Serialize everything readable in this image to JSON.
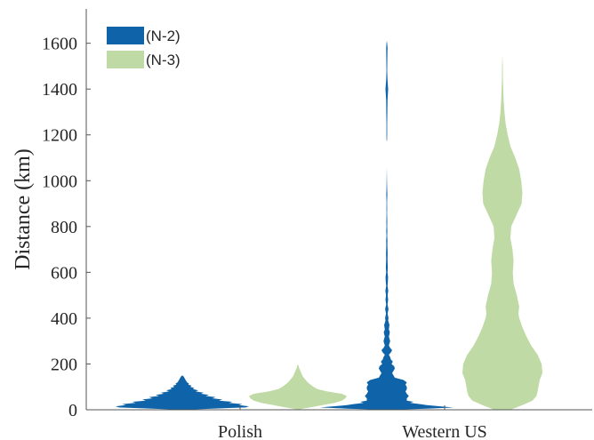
{
  "chart_data": {
    "type": "violin",
    "title": "",
    "xlabel": "",
    "ylabel": "Distance (km)",
    "ylim": [
      0,
      1750
    ],
    "yticks": [
      0,
      200,
      400,
      600,
      800,
      1000,
      1200,
      1400,
      1600
    ],
    "ytick_labels": [
      "0",
      "200",
      "400",
      "600",
      "800",
      "1000",
      "1200",
      "1400",
      "1600"
    ],
    "categories": [
      "Polish",
      "Western US"
    ],
    "grid": false,
    "legend_position": "top-left",
    "series": [
      {
        "name": "(N-2)",
        "color": "#0f63a8",
        "violins": [
          {
            "category": "Polish",
            "profile": [
              [
                0,
                0.03
              ],
              [
                5,
                0.45
              ],
              [
                10,
                0.95
              ],
              [
                15,
                1.0
              ],
              [
                20,
                0.85
              ],
              [
                25,
                0.9
              ],
              [
                30,
                0.7
              ],
              [
                35,
                0.75
              ],
              [
                40,
                0.55
              ],
              [
                45,
                0.6
              ],
              [
                50,
                0.45
              ],
              [
                55,
                0.5
              ],
              [
                60,
                0.35
              ],
              [
                65,
                0.4
              ],
              [
                70,
                0.28
              ],
              [
                75,
                0.32
              ],
              [
                80,
                0.2
              ],
              [
                85,
                0.24
              ],
              [
                90,
                0.16
              ],
              [
                95,
                0.18
              ],
              [
                100,
                0.12
              ],
              [
                105,
                0.14
              ],
              [
                110,
                0.09
              ],
              [
                115,
                0.1
              ],
              [
                120,
                0.07
              ],
              [
                125,
                0.06
              ],
              [
                130,
                0.05
              ],
              [
                135,
                0.04
              ],
              [
                140,
                0.03
              ],
              [
                145,
                0.02
              ],
              [
                150,
                0.0
              ]
            ]
          },
          {
            "category": "Western US",
            "profile": [
              [
                0,
                0.05
              ],
              [
                5,
                0.6
              ],
              [
                10,
                1.0
              ],
              [
                15,
                0.8
              ],
              [
                20,
                0.6
              ],
              [
                25,
                0.5
              ],
              [
                30,
                0.35
              ],
              [
                35,
                0.4
              ],
              [
                40,
                0.3
              ],
              [
                50,
                0.3
              ],
              [
                60,
                0.33
              ],
              [
                70,
                0.3
              ],
              [
                80,
                0.28
              ],
              [
                90,
                0.3
              ],
              [
                100,
                0.3
              ],
              [
                110,
                0.28
              ],
              [
                120,
                0.3
              ],
              [
                130,
                0.25
              ],
              [
                140,
                0.12
              ],
              [
                150,
                0.1
              ],
              [
                160,
                0.08
              ],
              [
                170,
                0.1
              ],
              [
                180,
                0.12
              ],
              [
                190,
                0.11
              ],
              [
                200,
                0.07
              ],
              [
                210,
                0.09
              ],
              [
                220,
                0.06
              ],
              [
                230,
                0.05
              ],
              [
                240,
                0.03
              ],
              [
                250,
                0.06
              ],
              [
                260,
                0.08
              ],
              [
                270,
                0.05
              ],
              [
                280,
                0.03
              ],
              [
                290,
                0.04
              ],
              [
                300,
                0.05
              ],
              [
                310,
                0.04
              ],
              [
                320,
                0.03
              ],
              [
                330,
                0.04
              ],
              [
                340,
                0.045
              ],
              [
                350,
                0.03
              ],
              [
                360,
                0.035
              ],
              [
                370,
                0.04
              ],
              [
                380,
                0.03
              ],
              [
                390,
                0.02
              ],
              [
                400,
                0.025
              ],
              [
                420,
                0.012
              ],
              [
                440,
                0.025
              ],
              [
                460,
                0.01
              ],
              [
                480,
                0.02
              ],
              [
                500,
                0.012
              ],
              [
                520,
                0.022
              ],
              [
                540,
                0.01
              ],
              [
                560,
                0.016
              ],
              [
                580,
                0.018
              ],
              [
                600,
                0.01
              ],
              [
                620,
                0.015
              ],
              [
                640,
                0.012
              ],
              [
                660,
                0.01
              ],
              [
                680,
                0.012
              ],
              [
                700,
                0.01
              ],
              [
                720,
                0.008
              ],
              [
                740,
                0.009
              ],
              [
                760,
                0.006
              ],
              [
                780,
                0.008
              ],
              [
                800,
                0.005
              ],
              [
                820,
                0.007
              ],
              [
                840,
                0.005
              ],
              [
                860,
                0.004
              ],
              [
                880,
                0.005
              ],
              [
                900,
                0.004
              ],
              [
                920,
                0.006
              ],
              [
                940,
                0.008
              ],
              [
                960,
                0.006
              ],
              [
                980,
                0.004
              ],
              [
                1000,
                0.003
              ],
              [
                1030,
                0.002
              ],
              [
                1060,
                0.0
              ],
              [
                1170,
                0.0
              ],
              [
                1180,
                0.004
              ],
              [
                1200,
                0.005
              ],
              [
                1250,
                0.006
              ],
              [
                1300,
                0.008
              ],
              [
                1350,
                0.01
              ],
              [
                1400,
                0.02
              ],
              [
                1420,
                0.015
              ],
              [
                1440,
                0.01
              ],
              [
                1480,
                0.006
              ],
              [
                1540,
                0.008
              ],
              [
                1580,
                0.01
              ],
              [
                1600,
                0.006
              ],
              [
                1610,
                0.0
              ]
            ]
          }
        ]
      },
      {
        "name": "(N-3)",
        "color": "#bfdaa5",
        "violins": [
          {
            "category": "Polish",
            "profile": [
              [
                0,
                0.0
              ],
              [
                5,
                0.1
              ],
              [
                10,
                0.25
              ],
              [
                20,
                0.5
              ],
              [
                30,
                0.75
              ],
              [
                40,
                0.9
              ],
              [
                50,
                0.97
              ],
              [
                60,
                1.0
              ],
              [
                70,
                0.9
              ],
              [
                80,
                0.6
              ],
              [
                90,
                0.4
              ],
              [
                100,
                0.32
              ],
              [
                110,
                0.26
              ],
              [
                120,
                0.2
              ],
              [
                130,
                0.16
              ],
              [
                140,
                0.12
              ],
              [
                150,
                0.09
              ],
              [
                160,
                0.07
              ],
              [
                170,
                0.05
              ],
              [
                180,
                0.03
              ],
              [
                190,
                0.015
              ],
              [
                200,
                0.0
              ]
            ]
          },
          {
            "category": "Western US",
            "profile": [
              [
                0,
                0.2
              ],
              [
                20,
                0.5
              ],
              [
                40,
                0.75
              ],
              [
                60,
                0.85
              ],
              [
                80,
                0.88
              ],
              [
                100,
                0.9
              ],
              [
                130,
                0.93
              ],
              [
                160,
                1.0
              ],
              [
                200,
                0.98
              ],
              [
                240,
                0.88
              ],
              [
                280,
                0.72
              ],
              [
                320,
                0.6
              ],
              [
                360,
                0.5
              ],
              [
                400,
                0.42
              ],
              [
                420,
                0.4
              ],
              [
                450,
                0.42
              ],
              [
                500,
                0.36
              ],
              [
                550,
                0.28
              ],
              [
                600,
                0.26
              ],
              [
                650,
                0.28
              ],
              [
                700,
                0.25
              ],
              [
                750,
                0.2
              ],
              [
                800,
                0.22
              ],
              [
                850,
                0.35
              ],
              [
                900,
                0.48
              ],
              [
                950,
                0.5
              ],
              [
                1000,
                0.47
              ],
              [
                1050,
                0.42
              ],
              [
                1100,
                0.32
              ],
              [
                1150,
                0.2
              ],
              [
                1200,
                0.13
              ],
              [
                1250,
                0.08
              ],
              [
                1300,
                0.05
              ],
              [
                1350,
                0.03
              ],
              [
                1400,
                0.02
              ],
              [
                1450,
                0.012
              ],
              [
                1500,
                0.008
              ],
              [
                1550,
                0.0
              ]
            ]
          }
        ]
      }
    ]
  }
}
